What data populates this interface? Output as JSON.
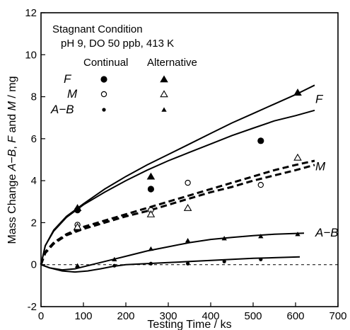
{
  "chart_data": {
    "type": "scatter",
    "xlabel": "Testing Time / ks",
    "ylabel_parts": [
      {
        "text": "Mass Change ",
        "italic": false
      },
      {
        "text": "A",
        "italic": true
      },
      {
        "text": "−",
        "italic": false
      },
      {
        "text": "B",
        "italic": true
      },
      {
        "text": ", ",
        "italic": false
      },
      {
        "text": "F",
        "italic": true
      },
      {
        "text": " and ",
        "italic": false
      },
      {
        "text": "M",
        "italic": true
      },
      {
        "text": " / mg",
        "italic": false
      }
    ],
    "xlim": [
      0,
      700
    ],
    "ylim": [
      -2,
      12
    ],
    "xticks": [
      0,
      100,
      200,
      300,
      400,
      500,
      600,
      700
    ],
    "yticks": [
      -2,
      0,
      2,
      4,
      6,
      8,
      10,
      12
    ],
    "annotation": {
      "line1": "Stagnant Condition",
      "line2": "pH 9, DO 50 ppb, 413 K"
    },
    "legend": {
      "header_continual": "Continual",
      "header_alternative": "Alternative",
      "rows": [
        {
          "label": "F",
          "continual_marker": "filled-circle-large",
          "alternative_marker": "filled-triangle-large"
        },
        {
          "label": "M",
          "continual_marker": "open-circle",
          "alternative_marker": "open-triangle"
        },
        {
          "label": "A−B",
          "continual_marker": "filled-circle-small",
          "alternative_marker": "filled-triangle-small"
        }
      ]
    },
    "series": [
      {
        "name": "F",
        "mode": "Continual",
        "marker": "filled-circle-large",
        "points": [
          [
            86,
            2.6
          ],
          [
            259,
            3.6
          ],
          [
            518,
            5.9
          ]
        ]
      },
      {
        "name": "F",
        "mode": "Alternative",
        "marker": "filled-triangle-large",
        "points": [
          [
            86,
            2.7
          ],
          [
            259,
            4.2
          ],
          [
            605,
            8.2
          ]
        ]
      },
      {
        "name": "M",
        "mode": "Continual",
        "marker": "open-circle",
        "points": [
          [
            86,
            1.9
          ],
          [
            259,
            2.6
          ],
          [
            346,
            3.9
          ],
          [
            518,
            3.8
          ]
        ]
      },
      {
        "name": "M",
        "mode": "Alternative",
        "marker": "open-triangle",
        "points": [
          [
            86,
            1.8
          ],
          [
            259,
            2.4
          ],
          [
            346,
            2.7
          ],
          [
            605,
            5.1
          ]
        ]
      },
      {
        "name": "A−B",
        "mode": "Continual",
        "marker": "filled-circle-small",
        "points": [
          [
            86,
            -0.1
          ],
          [
            173,
            -0.05
          ],
          [
            259,
            0.05
          ],
          [
            346,
            0.05
          ],
          [
            432,
            0.15
          ],
          [
            518,
            0.25
          ]
        ]
      },
      {
        "name": "A−B",
        "mode": "Alternative",
        "marker": "filled-triangle-small",
        "points": [
          [
            86,
            -0.05
          ],
          [
            173,
            0.25
          ],
          [
            259,
            0.75
          ],
          [
            346,
            1.15
          ],
          [
            432,
            1.25
          ],
          [
            518,
            1.35
          ],
          [
            605,
            1.45
          ]
        ]
      }
    ],
    "curves": [
      {
        "label": "F",
        "style": "solid",
        "points": [
          [
            0,
            0
          ],
          [
            10,
            0.9
          ],
          [
            30,
            1.6
          ],
          [
            60,
            2.25
          ],
          [
            100,
            2.85
          ],
          [
            150,
            3.45
          ],
          [
            200,
            4.0
          ],
          [
            250,
            4.5
          ],
          [
            300,
            4.95
          ],
          [
            350,
            5.35
          ],
          [
            400,
            5.75
          ],
          [
            450,
            6.15
          ],
          [
            500,
            6.5
          ],
          [
            550,
            6.85
          ],
          [
            600,
            7.1
          ],
          [
            645,
            7.35
          ]
        ]
      },
      {
        "label": "F",
        "style": "solid",
        "points": [
          [
            0,
            0
          ],
          [
            10,
            0.9
          ],
          [
            30,
            1.65
          ],
          [
            60,
            2.3
          ],
          [
            100,
            2.9
          ],
          [
            150,
            3.6
          ],
          [
            200,
            4.2
          ],
          [
            250,
            4.75
          ],
          [
            300,
            5.25
          ],
          [
            350,
            5.75
          ],
          [
            400,
            6.25
          ],
          [
            450,
            6.75
          ],
          [
            500,
            7.2
          ],
          [
            550,
            7.65
          ],
          [
            600,
            8.1
          ],
          [
            645,
            8.55
          ]
        ]
      },
      {
        "label": "M",
        "style": "dashed",
        "points": [
          [
            0,
            0
          ],
          [
            10,
            0.6
          ],
          [
            30,
            1.05
          ],
          [
            60,
            1.45
          ],
          [
            100,
            1.8
          ],
          [
            150,
            2.1
          ],
          [
            200,
            2.4
          ],
          [
            250,
            2.7
          ],
          [
            300,
            3.0
          ],
          [
            350,
            3.3
          ],
          [
            400,
            3.6
          ],
          [
            450,
            3.9
          ],
          [
            500,
            4.2
          ],
          [
            550,
            4.5
          ],
          [
            600,
            4.75
          ],
          [
            645,
            4.95
          ]
        ]
      },
      {
        "label": "M",
        "style": "dashed",
        "points": [
          [
            0,
            0
          ],
          [
            10,
            0.55
          ],
          [
            30,
            1.0
          ],
          [
            60,
            1.4
          ],
          [
            100,
            1.7
          ],
          [
            150,
            2.0
          ],
          [
            200,
            2.3
          ],
          [
            250,
            2.55
          ],
          [
            300,
            2.85
          ],
          [
            350,
            3.15
          ],
          [
            400,
            3.45
          ],
          [
            450,
            3.7
          ],
          [
            500,
            4.0
          ],
          [
            550,
            4.25
          ],
          [
            600,
            4.5
          ],
          [
            645,
            4.75
          ]
        ]
      },
      {
        "label": "A−B",
        "style": "solid",
        "points": [
          [
            0,
            0
          ],
          [
            20,
            -0.15
          ],
          [
            50,
            -0.3
          ],
          [
            80,
            -0.35
          ],
          [
            110,
            -0.3
          ],
          [
            140,
            -0.2
          ],
          [
            170,
            -0.08
          ],
          [
            200,
            0.0
          ],
          [
            250,
            0.05
          ],
          [
            300,
            0.1
          ],
          [
            350,
            0.15
          ],
          [
            400,
            0.2
          ],
          [
            450,
            0.25
          ],
          [
            500,
            0.3
          ],
          [
            550,
            0.33
          ],
          [
            610,
            0.37
          ]
        ]
      },
      {
        "label": "A−B",
        "style": "solid",
        "points": [
          [
            0,
            0
          ],
          [
            20,
            -0.15
          ],
          [
            50,
            -0.25
          ],
          [
            80,
            -0.2
          ],
          [
            100,
            -0.1
          ],
          [
            130,
            0.05
          ],
          [
            170,
            0.25
          ],
          [
            200,
            0.4
          ],
          [
            250,
            0.65
          ],
          [
            300,
            0.85
          ],
          [
            350,
            1.05
          ],
          [
            400,
            1.2
          ],
          [
            450,
            1.3
          ],
          [
            500,
            1.38
          ],
          [
            550,
            1.45
          ],
          [
            620,
            1.5
          ]
        ]
      }
    ],
    "reference_line": {
      "y": 0,
      "style": "dashed"
    },
    "curve_labels": [
      {
        "text": "F",
        "x": 650,
        "y": 7.9
      },
      {
        "text": "M",
        "x": 650,
        "y": 4.7
      },
      {
        "text": "A−B",
        "x": 650,
        "y": 1.55
      }
    ],
    "grid": false
  }
}
